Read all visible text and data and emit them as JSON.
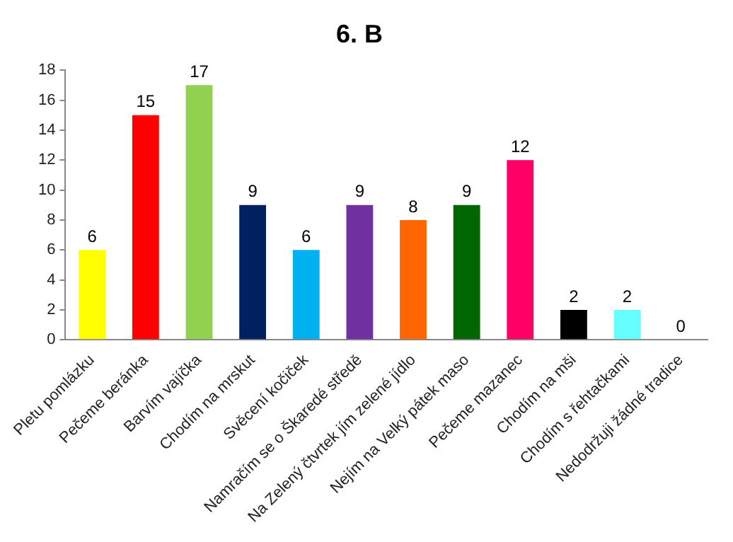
{
  "chart_data": {
    "type": "bar",
    "title": "6. B",
    "categories": [
      "Pletu pomlázku",
      "Pečeme beránka",
      "Barvím vajíčka",
      "Chodím na mrskut",
      "Svěcení kočiček",
      "Namračím se o Škaredé středě",
      "Na Zelený čtvrtek jím zelené jídlo",
      "Nejím na Velký pátek maso",
      "Pečeme mazanec",
      "Chodím na mši",
      "Chodím s řehtačkami",
      "Nedodržuji žádné tradice"
    ],
    "values": [
      6,
      15,
      17,
      9,
      6,
      9,
      8,
      9,
      12,
      2,
      2,
      0
    ],
    "colors": [
      "#ffff00",
      "#ff0000",
      "#92d050",
      "#002060",
      "#00b0f0",
      "#7030a0",
      "#ff6600",
      "#006600",
      "#ff0066",
      "#000000",
      "#66ffff",
      "#999999"
    ],
    "ylim": [
      0,
      18
    ],
    "yticks": [
      0,
      2,
      4,
      6,
      8,
      10,
      12,
      14,
      16,
      18
    ],
    "data_labels": true,
    "grid": false,
    "legend": false
  }
}
